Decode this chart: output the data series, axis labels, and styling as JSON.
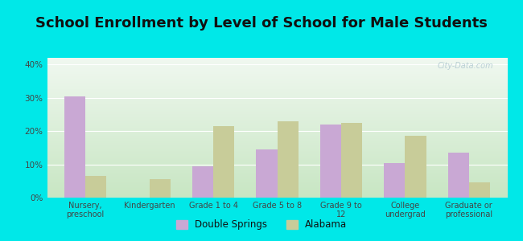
{
  "title": "School Enrollment by Level of School for Male Students",
  "categories": [
    "Nursery,\npreschool",
    "Kindergarten",
    "Grade 1 to 4",
    "Grade 5 to 8",
    "Grade 9 to\n12",
    "College\nundergrad",
    "Graduate or\nprofessional"
  ],
  "double_springs": [
    30.5,
    0,
    9.5,
    14.5,
    22,
    10.5,
    13.5
  ],
  "alabama": [
    6.5,
    5.5,
    21.5,
    23,
    22.5,
    18.5,
    4.5
  ],
  "color_ds": "#c9a8d4",
  "color_al": "#c8cc99",
  "background_outer": "#00e8e8",
  "background_top": "#f0f8f0",
  "background_bottom": "#c8e8c0",
  "ylim": [
    0,
    42
  ],
  "yticks": [
    0,
    10,
    20,
    30,
    40
  ],
  "ytick_labels": [
    "0%",
    "10%",
    "20%",
    "30%",
    "40%"
  ],
  "title_fontsize": 13,
  "legend_labels": [
    "Double Springs",
    "Alabama"
  ],
  "watermark": "City-Data.com"
}
